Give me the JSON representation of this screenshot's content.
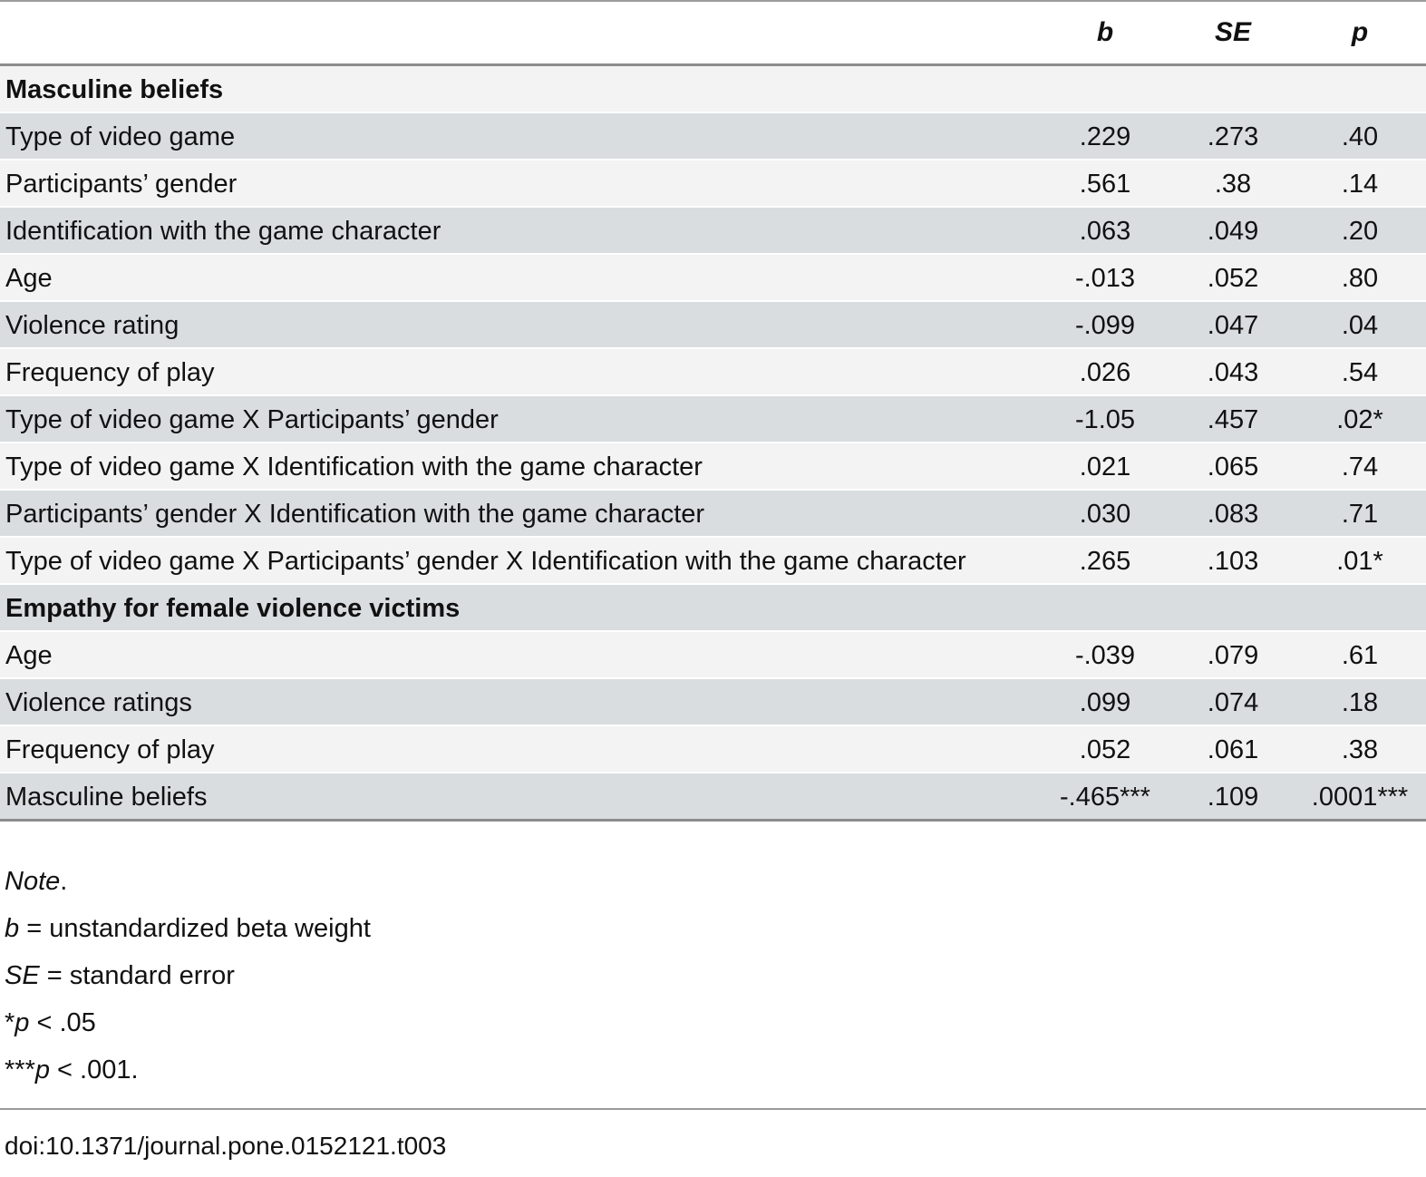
{
  "table": {
    "columns": [
      "b",
      "SE",
      "p"
    ],
    "sections": [
      {
        "header": "Masculine beliefs",
        "rows": [
          {
            "label": "Type of video game",
            "b": ".229",
            "se": ".273",
            "p": ".40"
          },
          {
            "label": "Participants’ gender",
            "b": ".561",
            "se": ".38",
            "p": ".14"
          },
          {
            "label": "Identification with the game character",
            "b": ".063",
            "se": ".049",
            "p": ".20"
          },
          {
            "label": "Age",
            "b": "-.013",
            "se": ".052",
            "p": ".80"
          },
          {
            "label": "Violence rating",
            "b": "-.099",
            "se": ".047",
            "p": ".04"
          },
          {
            "label": "Frequency of play",
            "b": ".026",
            "se": ".043",
            "p": ".54"
          },
          {
            "label": "Type of video game X Participants’ gender",
            "b": "-1.05",
            "se": ".457",
            "p": ".02*"
          },
          {
            "label": "Type of video game X Identification with the game character",
            "b": ".021",
            "se": ".065",
            "p": ".74"
          },
          {
            "label": "Participants’ gender X Identification with the game character",
            "b": ".030",
            "se": ".083",
            "p": ".71"
          },
          {
            "label": "Type of video game X Participants’ gender X Identification with the game character",
            "b": ".265",
            "se": ".103",
            "p": ".01*"
          }
        ]
      },
      {
        "header": "Empathy for female violence victims",
        "rows": [
          {
            "label": "Age",
            "b": "-.039",
            "se": ".079",
            "p": ".61"
          },
          {
            "label": "Violence ratings",
            "b": ".099",
            "se": ".074",
            "p": ".18"
          },
          {
            "label": "Frequency of play",
            "b": ".052",
            "se": ".061",
            "p": ".38"
          },
          {
            "label": "Masculine beliefs",
            "b": "-.465***",
            "se": ".109",
            "p": ".0001***"
          }
        ]
      }
    ]
  },
  "notes": {
    "note": {
      "italic": "Note",
      "rest": "."
    },
    "b_def": {
      "italic": "b",
      "rest": " = unstandardized beta weight"
    },
    "se_def": {
      "italic": "SE",
      "rest": " = standard error"
    },
    "p05": {
      "prefix": "*",
      "italic": "p",
      "rest": " < .05"
    },
    "p001": {
      "prefix": "***",
      "italic": "p",
      "rest": " < .001."
    }
  },
  "doi": "doi:10.1371/journal.pone.0152121.t003",
  "colors": {
    "row_light": "#f2f3f2",
    "row_dark": "#d9dde0",
    "rule_dark": "#8d8d8d",
    "rule_light": "#999999",
    "text": "#111111"
  }
}
